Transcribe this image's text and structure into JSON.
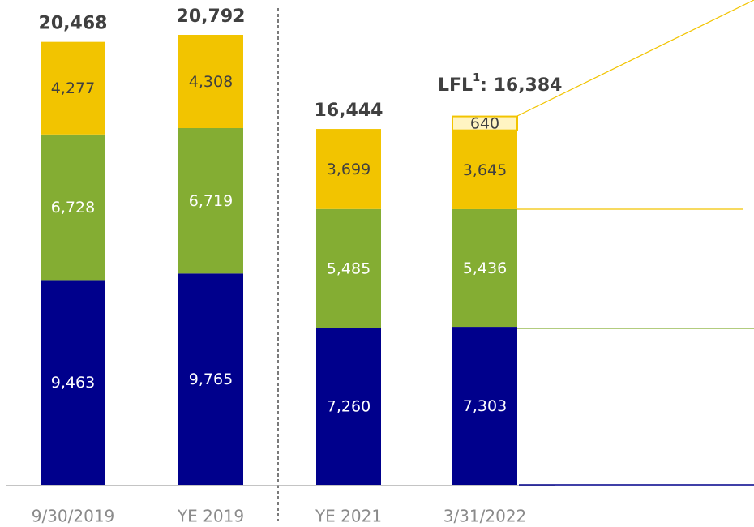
{
  "chart_data": {
    "type": "stacked_bar",
    "categories": [
      "9/30/2019",
      "YE 2019",
      "YE 2021",
      "3/31/2022"
    ],
    "series": [
      {
        "color": "#00008c",
        "label_color": "#ffffff",
        "values": [
          9463,
          9765,
          7260,
          7303
        ],
        "value_labels": [
          "9,463",
          "9,765",
          "7,260",
          "7,303"
        ]
      },
      {
        "color": "#84ad33",
        "label_color": "#ffffff",
        "values": [
          6728,
          6719,
          5485,
          5436
        ],
        "value_labels": [
          "6,728",
          "6,719",
          "5,485",
          "5,436"
        ]
      },
      {
        "color": "#f2c400",
        "label_color": "#404040",
        "values": [
          4277,
          4308,
          3699,
          3645
        ],
        "value_labels": [
          "4,277",
          "4,308",
          "3,699",
          "3,645"
        ]
      },
      {
        "color": "#fff4c2",
        "label_color": "#404040",
        "values": [
          null,
          null,
          null,
          640
        ],
        "value_labels": [
          null,
          null,
          null,
          "640"
        ]
      }
    ],
    "totals": [
      20468,
      20792,
      16444,
      null
    ],
    "total_labels": [
      "20,468",
      "20,792",
      "16,444",
      null
    ],
    "annotation": {
      "label": "LFL",
      "footnote": "1",
      "value": 16384,
      "value_label": ": 16,384"
    }
  }
}
